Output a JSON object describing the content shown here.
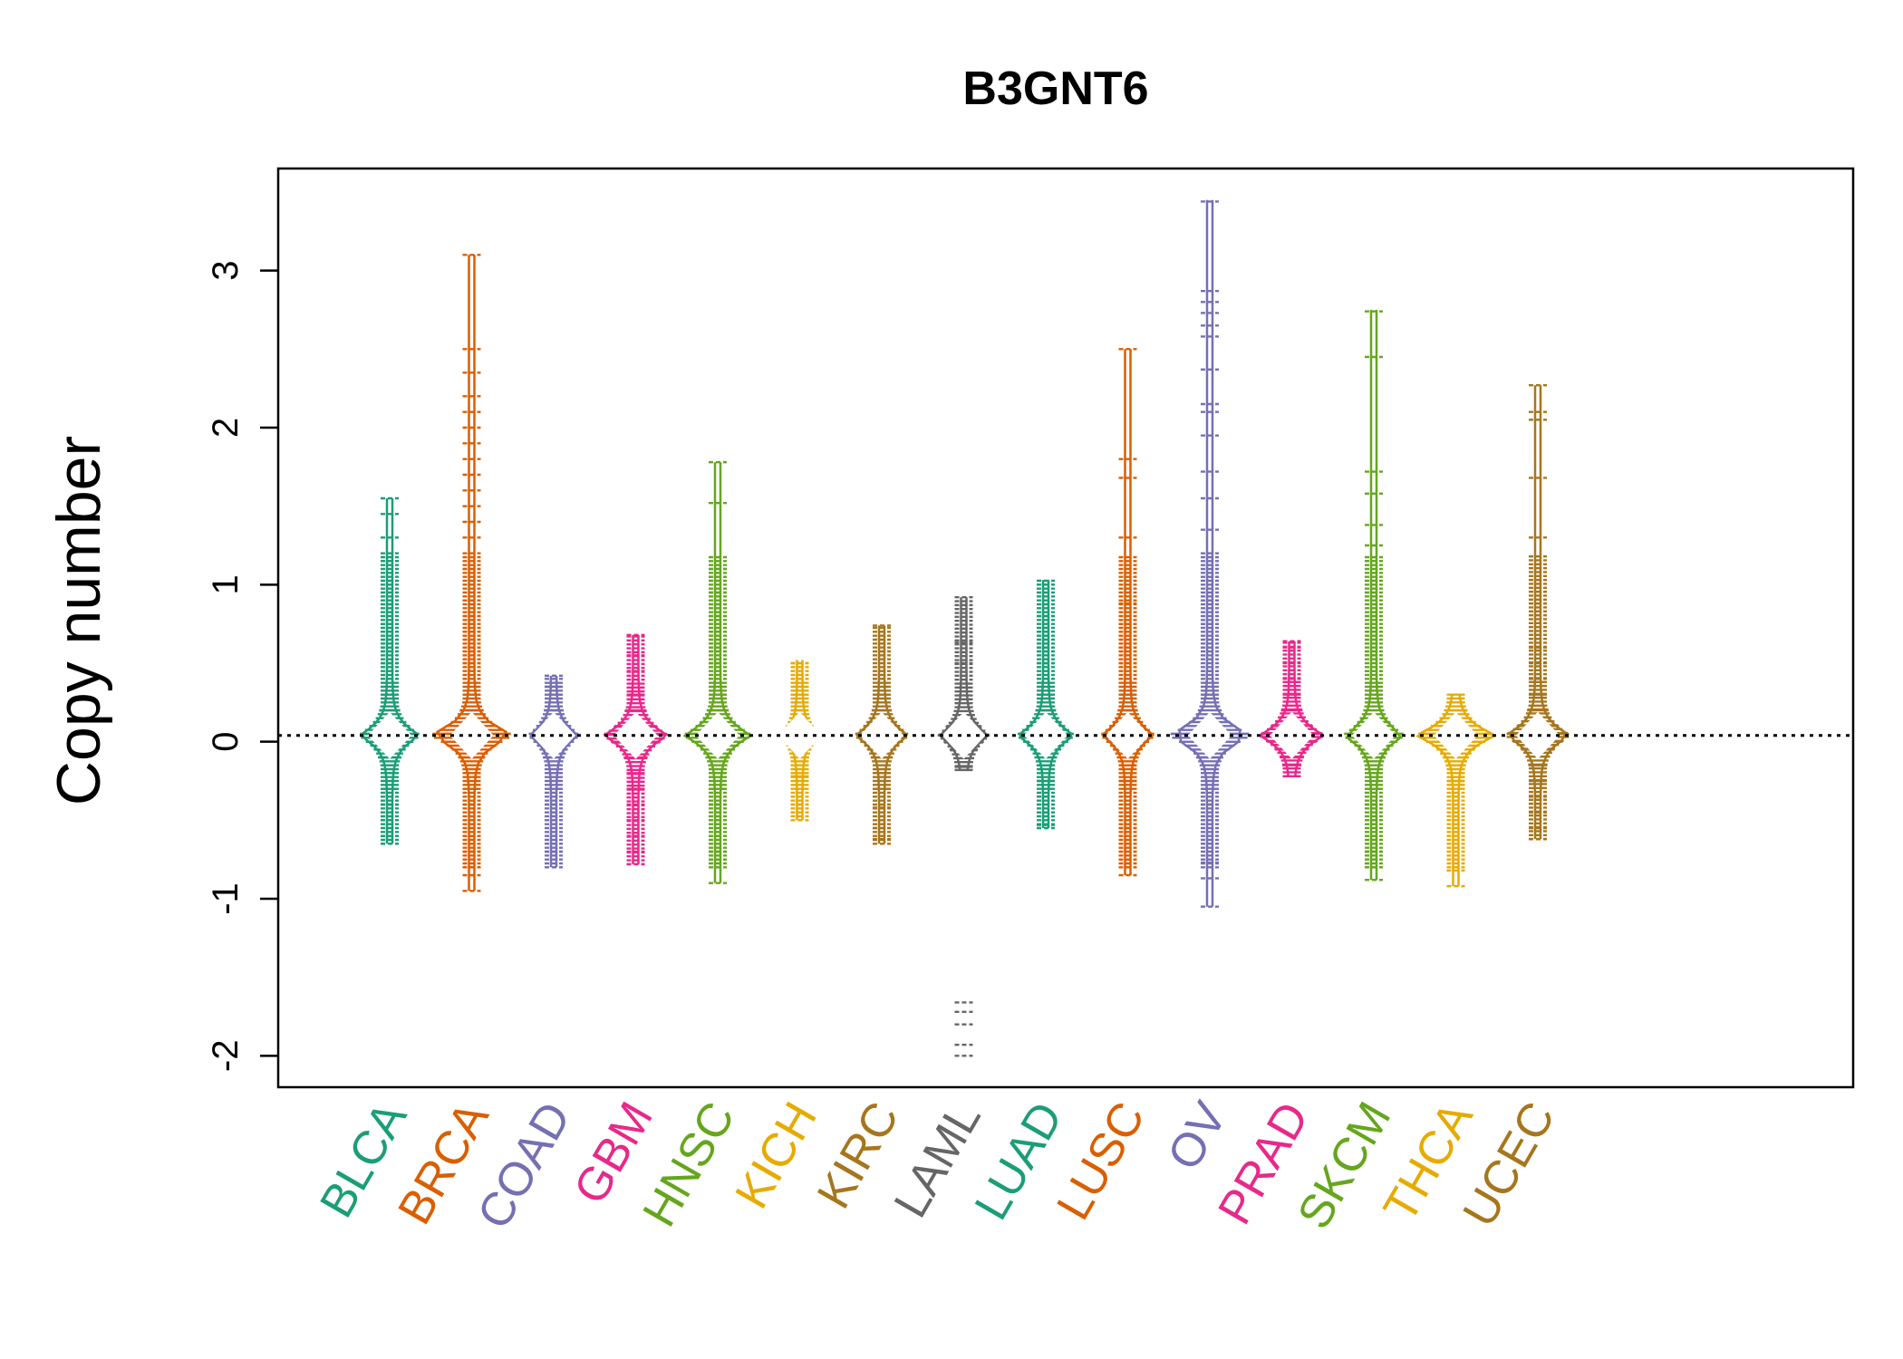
{
  "chart_data": {
    "type": "beanplot",
    "title": "B3GNT6",
    "xlabel": "",
    "ylabel": "Copy number",
    "ylim": [
      -2.2,
      3.65
    ],
    "yticks": [
      -2,
      -1,
      0,
      1,
      2,
      3
    ],
    "reference_line": 0.04,
    "grid": false,
    "categories": [
      {
        "name": "BLCA",
        "color": "#1b9e77",
        "min": -0.65,
        "max": 1.55,
        "spread": 0.7,
        "values": [
          -0.65,
          -0.6,
          -0.5,
          -0.4,
          -0.3,
          -0.2,
          -0.1,
          0.0,
          0.05,
          0.1,
          0.2,
          0.3,
          0.4,
          0.5,
          0.6,
          0.7,
          0.75,
          1.15,
          1.2,
          1.3,
          1.45,
          1.55
        ]
      },
      {
        "name": "BRCA",
        "color": "#d95f02",
        "min": -0.95,
        "max": 3.1,
        "spread": 1.0,
        "values": [
          -0.95,
          -0.85,
          -0.8,
          -0.7,
          -0.6,
          -0.5,
          -0.4,
          -0.3,
          -0.2,
          -0.1,
          0.0,
          0.05,
          0.1,
          0.2,
          0.3,
          0.4,
          0.5,
          0.6,
          0.7,
          0.8,
          0.9,
          1.0,
          1.1,
          1.2,
          1.3,
          1.4,
          1.5,
          1.6,
          1.7,
          1.8,
          1.9,
          2.0,
          2.1,
          2.2,
          2.35,
          2.5,
          3.1
        ]
      },
      {
        "name": "COAD",
        "color": "#7570b3",
        "min": -0.8,
        "max": 0.42,
        "spread": 0.55,
        "values": [
          -0.8,
          -0.7,
          -0.65,
          -0.5,
          -0.4,
          -0.3,
          -0.2,
          -0.1,
          0.0,
          0.05,
          0.1,
          0.2,
          0.3,
          0.35,
          0.42
        ]
      },
      {
        "name": "GBM",
        "color": "#e7298a",
        "min": -0.78,
        "max": 0.68,
        "spread": 0.75,
        "values": [
          -0.78,
          -0.7,
          -0.6,
          -0.5,
          -0.4,
          -0.3,
          -0.2,
          -0.1,
          0.0,
          0.05,
          0.1,
          0.2,
          0.3,
          0.45,
          0.55,
          0.68
        ]
      },
      {
        "name": "HNSC",
        "color": "#66a61e",
        "min": -0.9,
        "max": 1.78,
        "spread": 0.8,
        "values": [
          -0.9,
          -0.75,
          -0.7,
          -0.6,
          -0.5,
          -0.4,
          -0.3,
          -0.2,
          -0.1,
          0.0,
          0.05,
          0.1,
          0.2,
          0.3,
          0.4,
          0.5,
          0.6,
          0.7,
          0.8,
          0.95,
          1.05,
          1.1,
          1.52,
          1.78
        ]
      },
      {
        "name": "KICH",
        "color": "#e6ab02",
        "min": -0.5,
        "max": 0.52,
        "spread": 0.35,
        "values": [
          -0.45,
          -0.4,
          -0.22,
          0.0,
          0.05,
          0.1,
          0.2,
          0.3,
          0.4,
          0.5
        ]
      },
      {
        "name": "KIRC",
        "color": "#a6761d",
        "min": -0.65,
        "max": 0.74,
        "spread": 0.6,
        "values": [
          -0.62,
          -0.55,
          -0.42,
          -0.3,
          -0.2,
          -0.1,
          0.0,
          0.05,
          0.1,
          0.2,
          0.3,
          0.4,
          0.74
        ]
      },
      {
        "name": "LAML",
        "color": "#666666",
        "min": -0.18,
        "max": 0.92,
        "spread": 0.55,
        "values": [
          -2.0,
          -1.93,
          -1.8,
          -1.72,
          -1.66,
          -0.16,
          -0.05,
          0.0,
          0.04,
          0.1,
          0.5,
          0.63,
          0.92
        ]
      },
      {
        "name": "LUAD",
        "color": "#1b9e77",
        "min": -0.55,
        "max": 1.03,
        "spread": 0.65,
        "values": [
          -0.53,
          -0.45,
          -0.35,
          -0.25,
          -0.15,
          -0.05,
          0.0,
          0.05,
          0.1,
          0.2,
          0.3,
          0.4,
          0.5,
          0.6,
          0.7,
          0.8,
          1.0
        ]
      },
      {
        "name": "LUSC",
        "color": "#d95f02",
        "min": -0.85,
        "max": 2.5,
        "spread": 0.6,
        "values": [
          -0.85,
          -0.75,
          -0.65,
          -0.55,
          -0.45,
          -0.35,
          -0.25,
          -0.15,
          -0.05,
          0.0,
          0.05,
          0.1,
          0.2,
          0.3,
          0.4,
          0.5,
          0.6,
          0.75,
          0.88,
          1.3,
          1.68,
          1.8,
          2.5
        ]
      },
      {
        "name": "OV",
        "color": "#7570b3",
        "min": -1.05,
        "max": 3.45,
        "spread": 1.0,
        "values": [
          -1.05,
          -0.87,
          -0.77,
          -0.65,
          -0.5,
          -0.4,
          -0.3,
          -0.2,
          -0.1,
          0.0,
          0.05,
          0.15,
          0.3,
          0.45,
          0.6,
          0.75,
          0.9,
          1.05,
          1.2,
          1.35,
          1.55,
          1.72,
          1.95,
          2.1,
          2.15,
          2.37,
          2.58,
          2.65,
          2.73,
          2.8,
          2.87,
          3.44
        ]
      },
      {
        "name": "PRAD",
        "color": "#e7298a",
        "min": -0.22,
        "max": 0.64,
        "spread": 0.75,
        "values": [
          -0.22,
          -0.15,
          -0.1,
          -0.05,
          0.0,
          0.05,
          0.1,
          0.2,
          0.3,
          0.4,
          0.5,
          0.6,
          0.64
        ]
      },
      {
        "name": "SKCM",
        "color": "#66a61e",
        "min": -0.88,
        "max": 2.75,
        "spread": 0.7,
        "values": [
          -0.88,
          -0.8,
          -0.7,
          -0.6,
          -0.5,
          -0.4,
          -0.3,
          -0.2,
          -0.1,
          0.0,
          0.05,
          0.15,
          0.3,
          0.45,
          0.55,
          0.7,
          0.8,
          1.15,
          1.25,
          1.38,
          1.58,
          1.72,
          2.45,
          2.74
        ]
      },
      {
        "name": "THCA",
        "color": "#e6ab02",
        "min": -0.92,
        "max": 0.3,
        "spread": 0.95,
        "values": [
          -0.92,
          -0.82,
          -0.5,
          -0.45,
          -0.35,
          -0.25,
          -0.15,
          -0.05,
          0.0,
          0.05,
          0.1,
          0.2,
          0.3
        ]
      },
      {
        "name": "UCEC",
        "color": "#a6761d",
        "min": -0.62,
        "max": 2.27,
        "spread": 0.75,
        "values": [
          -0.62,
          -0.55,
          -0.45,
          -0.35,
          -0.25,
          -0.15,
          -0.05,
          0.0,
          0.05,
          0.1,
          0.2,
          0.3,
          0.4,
          0.5,
          0.6,
          0.68,
          1.3,
          1.68,
          2.05,
          2.1,
          2.27
        ]
      }
    ]
  }
}
